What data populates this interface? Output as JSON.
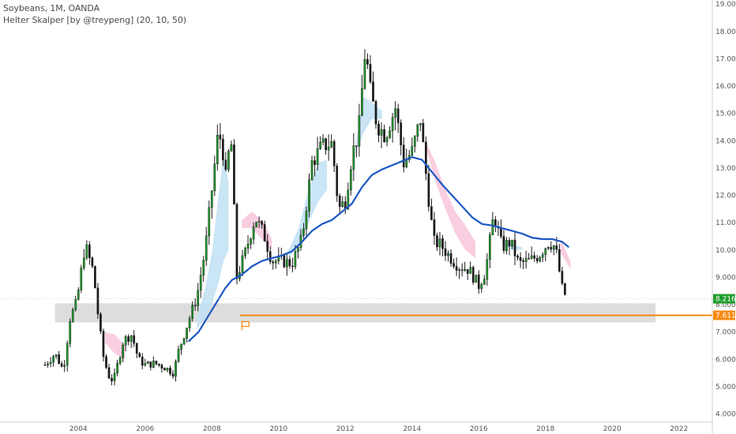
{
  "header": {
    "symbol_line": "Soybeans, 1M, OANDA",
    "indicator_line": "Helter Skalper [by @treypeng] (20, 10, 50)"
  },
  "colors": {
    "up": "#1e9e2a",
    "down": "#1a1a1a",
    "ma": "#1c57c4",
    "band_up": "#bfe1f5",
    "band_down": "#f8c6dc",
    "zone": "#d9d9d9",
    "level": "#f68a12",
    "price_badge": "#1e9e2a"
  },
  "price_badge": "8.216",
  "level_badge": "7.611",
  "chart_data": {
    "type": "candlestick",
    "title": "Soybeans, 1M, OANDA",
    "indicator": "Helter Skalper [by @treypeng] (20, 10, 50)",
    "y_ticks": [
      "4.000",
      "5.000",
      "6.000",
      "7.000",
      "8.000",
      "9.000",
      "10.000",
      "11.000",
      "12.000",
      "13.000",
      "14.000",
      "15.000",
      "16.000",
      "17.000",
      "18.000",
      "19.000"
    ],
    "x_ticks": [
      "2004",
      "2006",
      "2008",
      "2010",
      "2012",
      "2014",
      "2016",
      "2018",
      "2020",
      "2022"
    ],
    "ylim": [
      3.7,
      19.15
    ],
    "xlim": [
      2001.65,
      2023.0
    ],
    "horizontal_level": 7.611,
    "support_zone": [
      7.35,
      8.05
    ],
    "last_price": 8.216,
    "anchor_points": [
      [
        2003.0,
        5.8
      ],
      [
        2003.3,
        6.2
      ],
      [
        2003.55,
        5.6
      ],
      [
        2003.75,
        7.5
      ],
      [
        2003.95,
        8.1
      ],
      [
        2004.2,
        10.2
      ],
      [
        2004.45,
        9.2
      ],
      [
        2004.6,
        7.5
      ],
      [
        2004.75,
        6.1
      ],
      [
        2004.9,
        5.4
      ],
      [
        2005.05,
        5.2
      ],
      [
        2005.35,
        6.7
      ],
      [
        2005.6,
        6.9
      ],
      [
        2005.8,
        6.0
      ],
      [
        2006.0,
        5.8
      ],
      [
        2006.3,
        5.85
      ],
      [
        2006.6,
        5.7
      ],
      [
        2006.85,
        5.5
      ],
      [
        2007.0,
        6.3
      ],
      [
        2007.3,
        7.4
      ],
      [
        2007.55,
        8.3
      ],
      [
        2007.8,
        10.0
      ],
      [
        2008.0,
        12.2
      ],
      [
        2008.2,
        14.4
      ],
      [
        2008.35,
        13.5
      ],
      [
        2008.45,
        12.2
      ],
      [
        2008.55,
        14.8
      ],
      [
        2008.75,
        9.0
      ],
      [
        2009.0,
        9.9
      ],
      [
        2009.3,
        11.2
      ],
      [
        2009.55,
        10.6
      ],
      [
        2009.8,
        9.6
      ],
      [
        2010.1,
        9.6
      ],
      [
        2010.4,
        9.5
      ],
      [
        2010.7,
        10.4
      ],
      [
        2011.0,
        13.2
      ],
      [
        2011.3,
        13.8
      ],
      [
        2011.6,
        13.9
      ],
      [
        2011.8,
        11.5
      ],
      [
        2012.0,
        11.8
      ],
      [
        2012.2,
        13.5
      ],
      [
        2012.4,
        14.3
      ],
      [
        2012.6,
        17.4
      ],
      [
        2012.75,
        15.8
      ],
      [
        2012.95,
        14.6
      ],
      [
        2013.2,
        14.2
      ],
      [
        2013.5,
        15.2
      ],
      [
        2013.75,
        13.2
      ],
      [
        2014.0,
        13.6
      ],
      [
        2014.25,
        14.8
      ],
      [
        2014.45,
        12.4
      ],
      [
        2014.65,
        10.3
      ],
      [
        2014.85,
        10.2
      ],
      [
        2015.1,
        9.8
      ],
      [
        2015.4,
        9.4
      ],
      [
        2015.7,
        9.3
      ],
      [
        2016.0,
        8.7
      ],
      [
        2016.2,
        9.2
      ],
      [
        2016.45,
        11.3
      ],
      [
        2016.7,
        10.1
      ],
      [
        2016.95,
        10.3
      ],
      [
        2017.2,
        9.5
      ],
      [
        2017.5,
        9.6
      ],
      [
        2017.8,
        9.8
      ],
      [
        2018.1,
        10.3
      ],
      [
        2018.3,
        10.1
      ],
      [
        2018.5,
        8.6
      ],
      [
        2018.65,
        8.2
      ]
    ],
    "ma_points": [
      [
        2007.3,
        6.65
      ],
      [
        2007.6,
        7.0
      ],
      [
        2007.9,
        7.6
      ],
      [
        2008.2,
        8.2
      ],
      [
        2008.4,
        8.6
      ],
      [
        2008.6,
        8.9
      ],
      [
        2008.9,
        9.1
      ],
      [
        2009.2,
        9.4
      ],
      [
        2009.5,
        9.6
      ],
      [
        2009.8,
        9.7
      ],
      [
        2010.1,
        9.8
      ],
      [
        2010.4,
        9.95
      ],
      [
        2010.7,
        10.3
      ],
      [
        2011.0,
        10.7
      ],
      [
        2011.3,
        10.95
      ],
      [
        2011.6,
        11.1
      ],
      [
        2011.9,
        11.4
      ],
      [
        2012.2,
        11.7
      ],
      [
        2012.5,
        12.3
      ],
      [
        2012.8,
        12.75
      ],
      [
        2013.1,
        12.95
      ],
      [
        2013.4,
        13.1
      ],
      [
        2013.7,
        13.25
      ],
      [
        2014.0,
        13.4
      ],
      [
        2014.3,
        13.3
      ],
      [
        2014.6,
        12.85
      ],
      [
        2014.9,
        12.4
      ],
      [
        2015.2,
        12.0
      ],
      [
        2015.5,
        11.6
      ],
      [
        2015.8,
        11.2
      ],
      [
        2016.1,
        10.95
      ],
      [
        2016.4,
        10.9
      ],
      [
        2016.7,
        10.8
      ],
      [
        2017.0,
        10.7
      ],
      [
        2017.3,
        10.6
      ],
      [
        2017.6,
        10.45
      ],
      [
        2017.9,
        10.4
      ],
      [
        2018.2,
        10.4
      ],
      [
        2018.5,
        10.3
      ],
      [
        2018.7,
        10.1
      ]
    ],
    "bands": [
      {
        "kind": "up",
        "points": [
          [
            2007.55,
            7.1,
            7.5
          ],
          [
            2007.8,
            7.5,
            8.6
          ],
          [
            2008.0,
            8.0,
            9.9
          ],
          [
            2008.2,
            8.8,
            12.0
          ],
          [
            2008.35,
            9.6,
            13.4
          ],
          [
            2008.5,
            10.0,
            12.5
          ]
        ]
      },
      {
        "kind": "down",
        "points": [
          [
            2008.9,
            10.8,
            11.1
          ],
          [
            2009.2,
            10.8,
            11.4
          ],
          [
            2009.5,
            10.4,
            11.1
          ],
          [
            2009.8,
            10.0,
            10.4
          ]
        ]
      },
      {
        "kind": "up",
        "points": [
          [
            2010.3,
            9.7,
            10.0
          ],
          [
            2010.6,
            10.2,
            10.8
          ],
          [
            2010.9,
            11.0,
            12.2
          ],
          [
            2011.2,
            11.8,
            13.2
          ],
          [
            2011.45,
            12.2,
            13.3
          ]
        ]
      },
      {
        "kind": "up",
        "points": [
          [
            2012.3,
            13.5,
            13.8
          ],
          [
            2012.55,
            14.3,
            15.6
          ],
          [
            2012.8,
            14.8,
            15.4
          ],
          [
            2013.1,
            14.8,
            15.1
          ]
        ]
      },
      {
        "kind": "down",
        "points": [
          [
            2014.4,
            13.8,
            14.0
          ],
          [
            2014.7,
            12.5,
            13.2
          ],
          [
            2015.0,
            11.5,
            12.2
          ],
          [
            2015.3,
            10.6,
            11.4
          ],
          [
            2015.6,
            10.0,
            10.9
          ],
          [
            2015.9,
            9.7,
            10.3
          ]
        ]
      },
      {
        "kind": "up",
        "points": [
          [
            2016.7,
            10.2,
            10.5
          ],
          [
            2017.0,
            10.0,
            10.2
          ],
          [
            2017.3,
            10.0,
            10.1
          ]
        ]
      },
      {
        "kind": "down",
        "points": [
          [
            2018.45,
            9.9,
            10.4
          ],
          [
            2018.75,
            9.3,
            9.6
          ]
        ]
      },
      {
        "kind": "down",
        "points": [
          [
            2004.8,
            6.6,
            7.0
          ],
          [
            2005.1,
            6.2,
            6.9
          ],
          [
            2005.4,
            6.0,
            6.5
          ]
        ]
      }
    ]
  }
}
